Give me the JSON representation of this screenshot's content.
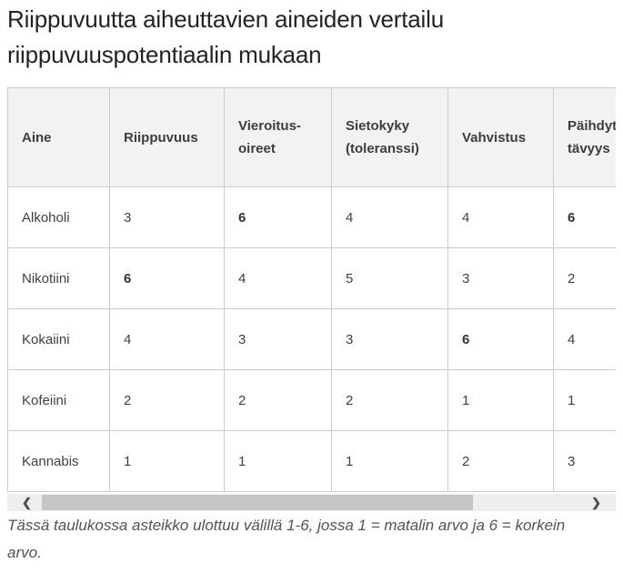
{
  "page": {
    "title": "Riippuvuutta aiheuttavien aineiden vertailu riippuvuuspotentiaalin mukaan",
    "footnote": "Tässä taulukossa asteikko ulottuu välillä 1-6, jossa 1 = matalin arvo ja 6 = korkein arvo."
  },
  "table": {
    "columns": [
      "Aine",
      "Riippuvuus",
      "Vieroitus-\noireet",
      "Sietokyky\n(toleranssi)",
      "Vahvistus",
      "Päihdyt-\ntävyys"
    ],
    "rows": [
      {
        "name": "Alkoholi",
        "values": [
          "3",
          "6",
          "4",
          "4",
          "6"
        ]
      },
      {
        "name": "Nikotiini",
        "values": [
          "6",
          "4",
          "5",
          "3",
          "2"
        ]
      },
      {
        "name": "Kokaiini",
        "values": [
          "4",
          "3",
          "3",
          "6",
          "4"
        ]
      },
      {
        "name": "Kofeiini",
        "values": [
          "2",
          "2",
          "2",
          "1",
          "1"
        ]
      },
      {
        "name": "Kannabis",
        "values": [
          "1",
          "1",
          "1",
          "2",
          "3"
        ]
      }
    ],
    "emphasized_value": "6"
  },
  "scrollbar": {
    "left_arrow": "❮",
    "right_arrow": "❯"
  },
  "colors": {
    "header_bg": "#f2f2f2",
    "border": "#cccccc",
    "cell_text": "#404040",
    "title_text": "#232323",
    "footnote_text": "#545454",
    "scrollbar_track": "#eeeeee",
    "scrollbar_thumb": "#c5c5c5",
    "scrollbar_arrow": "#4d4d4d"
  },
  "chart_data": {
    "type": "table",
    "title": "Riippuvuutta aiheuttavien aineiden vertailu riippuvuuspotentiaalin mukaan",
    "columns": [
      "Aine",
      "Riippuvuus",
      "Vieroitus-oireet",
      "Sietokyky (toleranssi)",
      "Vahvistus",
      "Päihdyttävyys"
    ],
    "rows": [
      [
        "Alkoholi",
        3,
        6,
        4,
        4,
        6
      ],
      [
        "Nikotiini",
        6,
        4,
        5,
        3,
        2
      ],
      [
        "Kokaiini",
        4,
        3,
        3,
        6,
        4
      ],
      [
        "Kofeiini",
        2,
        2,
        2,
        1,
        1
      ],
      [
        "Kannabis",
        1,
        1,
        1,
        2,
        3
      ]
    ],
    "value_scale": [
      1,
      6
    ]
  }
}
